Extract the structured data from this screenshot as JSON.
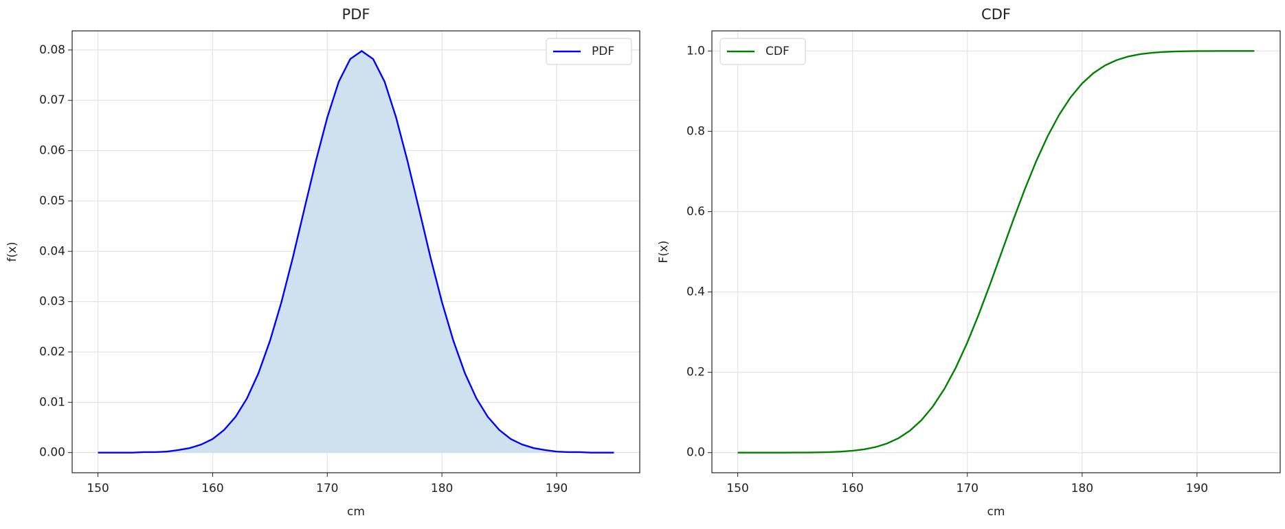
{
  "chart_data": [
    {
      "type": "line",
      "title": "PDF",
      "x_label": "cm",
      "y_label": "f(x)",
      "x": [
        150,
        151,
        152,
        153,
        154,
        155,
        156,
        157,
        158,
        159,
        160,
        161,
        162,
        163,
        164,
        165,
        166,
        167,
        168,
        169,
        170,
        171,
        172,
        173,
        174,
        175,
        176,
        177,
        178,
        179,
        180,
        181,
        182,
        183,
        184,
        185,
        186,
        187,
        188,
        189,
        190,
        191,
        192,
        193,
        194,
        195
      ],
      "series": [
        {
          "name": "PDF",
          "color": "#0000ff",
          "values": [
            0,
            0,
            0,
            0,
            0.0001,
            0.0001,
            0.0002,
            0.0005,
            0.0009,
            0.0016,
            0.0027,
            0.0045,
            0.0071,
            0.0108,
            0.0158,
            0.0222,
            0.0299,
            0.0388,
            0.0484,
            0.0579,
            0.0666,
            0.0737,
            0.0782,
            0.0798,
            0.0782,
            0.0737,
            0.0666,
            0.0579,
            0.0484,
            0.0388,
            0.0299,
            0.0222,
            0.0158,
            0.0108,
            0.0071,
            0.0045,
            0.0027,
            0.0016,
            0.0009,
            0.0005,
            0.0002,
            0.0001,
            0.0001,
            0,
            0,
            0
          ]
        }
      ],
      "fill": true,
      "fill_color": "#cfe0ee",
      "xlim": [
        147.75,
        197.25
      ],
      "xticks": [
        150,
        160,
        170,
        180,
        190
      ],
      "ylim": [
        -0.004,
        0.0838
      ],
      "yticks": [
        {
          "value": 0,
          "label": "0.00"
        },
        {
          "value": 0.01,
          "label": "0.01"
        },
        {
          "value": 0.02,
          "label": "0.02"
        },
        {
          "value": 0.03,
          "label": "0.03"
        },
        {
          "value": 0.04,
          "label": "0.04"
        },
        {
          "value": 0.05,
          "label": "0.05"
        },
        {
          "value": 0.06,
          "label": "0.06"
        },
        {
          "value": 0.07,
          "label": "0.07"
        },
        {
          "value": 0.08,
          "label": "0.08"
        }
      ],
      "grid": true,
      "legend": "upper-right"
    },
    {
      "type": "line",
      "title": "CDF",
      "x_label": "cm",
      "y_label": "F(x)",
      "x": [
        150,
        151,
        152,
        153,
        154,
        155,
        156,
        157,
        158,
        159,
        160,
        161,
        162,
        163,
        164,
        165,
        166,
        167,
        168,
        169,
        170,
        171,
        172,
        173,
        174,
        175,
        176,
        177,
        178,
        179,
        180,
        181,
        182,
        183,
        184,
        185,
        186,
        187,
        188,
        189,
        190,
        191,
        192,
        193,
        194,
        195
      ],
      "series": [
        {
          "name": "CDF",
          "color": "#008000",
          "values": [
            0,
            0,
            0,
            0,
            0.0001,
            0.0002,
            0.0003,
            0.0007,
            0.0013,
            0.0026,
            0.0047,
            0.0082,
            0.0139,
            0.0228,
            0.0359,
            0.0548,
            0.0808,
            0.1151,
            0.1587,
            0.2119,
            0.2743,
            0.3446,
            0.4207,
            0.5,
            0.5793,
            0.6554,
            0.7257,
            0.7881,
            0.8413,
            0.8849,
            0.9192,
            0.9452,
            0.9641,
            0.9772,
            0.9861,
            0.9918,
            0.9953,
            0.9974,
            0.9987,
            0.9993,
            0.9997,
            0.9998,
            0.9999,
            1,
            1,
            1
          ]
        }
      ],
      "fill": false,
      "xlim": [
        147.75,
        197.25
      ],
      "xticks": [
        150,
        160,
        170,
        180,
        190
      ],
      "ylim": [
        -0.05,
        1.05
      ],
      "yticks": [
        {
          "value": 0,
          "label": "0.0"
        },
        {
          "value": 0.2,
          "label": "0.2"
        },
        {
          "value": 0.4,
          "label": "0.4"
        },
        {
          "value": 0.6,
          "label": "0.6"
        },
        {
          "value": 0.8,
          "label": "0.8"
        },
        {
          "value": 1,
          "label": "1.0"
        }
      ],
      "grid": true,
      "legend": "upper-left"
    }
  ]
}
